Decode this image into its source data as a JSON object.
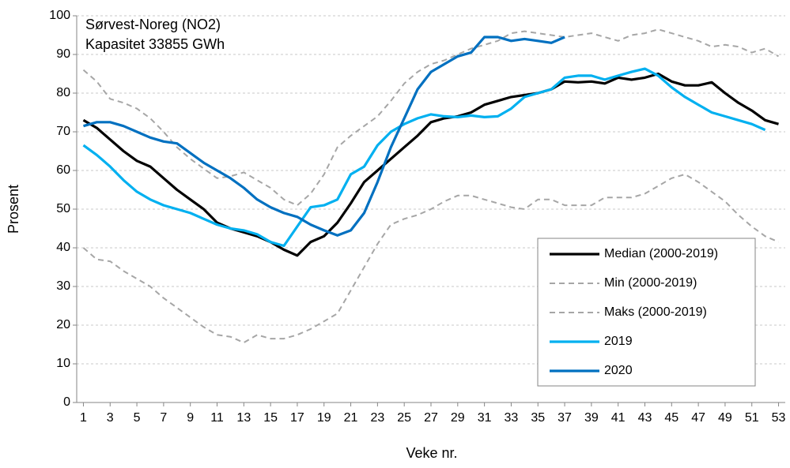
{
  "chart_data": {
    "type": "line",
    "title": "Sørvest-Noreg (NO2)",
    "subtitle": "Kapasitet 33855 GWh",
    "x_label": "Veke nr.",
    "y_label": "Prosent",
    "x": [
      1,
      2,
      3,
      4,
      5,
      6,
      7,
      8,
      9,
      10,
      11,
      12,
      13,
      14,
      15,
      16,
      17,
      18,
      19,
      20,
      21,
      22,
      23,
      24,
      25,
      26,
      27,
      28,
      29,
      30,
      31,
      32,
      33,
      34,
      35,
      36,
      37,
      38,
      39,
      40,
      41,
      42,
      43,
      44,
      45,
      46,
      47,
      48,
      49,
      50,
      51,
      52,
      53
    ],
    "xlim": [
      0.5,
      53.5
    ],
    "xticks": [
      1,
      3,
      5,
      7,
      9,
      11,
      13,
      15,
      17,
      19,
      21,
      23,
      25,
      27,
      29,
      31,
      33,
      35,
      37,
      39,
      41,
      43,
      45,
      47,
      49,
      51,
      53
    ],
    "ylim": [
      0,
      100
    ],
    "yticks": [
      0,
      10,
      20,
      30,
      40,
      50,
      60,
      70,
      80,
      90,
      100
    ],
    "grid": true,
    "legend": "lower right",
    "series": [
      {
        "name": "Median (2000-2019)",
        "color": "#000000",
        "dashed": false,
        "values": [
          73,
          71,
          68,
          65,
          62.5,
          61,
          58,
          55,
          52.5,
          50,
          46.5,
          45,
          44,
          43,
          41.5,
          39.5,
          38,
          41.5,
          43,
          46.5,
          51.5,
          57,
          60,
          63,
          66,
          69,
          72.5,
          73.5,
          74,
          75,
          77,
          78,
          79,
          79.5,
          80,
          81,
          83,
          82.8,
          83,
          82.5,
          84,
          83.5,
          84,
          85,
          83,
          82,
          82,
          82.8,
          80,
          77.5,
          75.5,
          73,
          72
        ]
      },
      {
        "name": "Min (2000-2019)",
        "color": "#a6a6a6",
        "dashed": true,
        "values": [
          40,
          37,
          36.5,
          34,
          32,
          30,
          27,
          24.5,
          22,
          19.5,
          17.5,
          17,
          15.5,
          17.5,
          16.5,
          16.5,
          17.5,
          19,
          21,
          23,
          29,
          35,
          41,
          46,
          47.5,
          48.5,
          50,
          52,
          53.5,
          53.5,
          52.5,
          51.5,
          50.5,
          50,
          52.5,
          52.5,
          51,
          51,
          51,
          53,
          53,
          53,
          54,
          56,
          58,
          59,
          57,
          54.5,
          52,
          48.5,
          45.5,
          43,
          41.5
        ]
      },
      {
        "name": "Maks (2000-2019)",
        "color": "#a6a6a6",
        "dashed": true,
        "values": [
          86,
          83,
          78.5,
          77.5,
          76,
          73.5,
          70,
          66,
          63,
          60.5,
          58,
          58.5,
          59.5,
          57.5,
          55.5,
          52.5,
          51,
          54,
          59,
          66,
          69,
          71.5,
          74,
          78,
          82.5,
          85.5,
          87.5,
          88.5,
          90,
          91.5,
          92.5,
          93.5,
          95.5,
          96,
          95.5,
          95,
          94.5,
          95,
          95.5,
          94.5,
          93.5,
          95,
          95.5,
          96.5,
          95.5,
          94.5,
          93.5,
          92,
          92.5,
          92,
          90.5,
          91.5,
          89.5
        ]
      },
      {
        "name": "2019",
        "color": "#00b0f0",
        "dashed": false,
        "values": [
          66.5,
          64,
          61,
          57.5,
          54.5,
          52.5,
          51,
          50,
          49,
          47.5,
          46,
          45,
          44.5,
          43.5,
          41.5,
          40.5,
          45.5,
          50.5,
          51,
          52.5,
          59,
          61,
          66.5,
          70,
          72,
          73.5,
          74.5,
          74,
          73.8,
          74.2,
          73.8,
          74,
          76,
          79,
          80,
          81,
          84,
          84.5,
          84.5,
          83.5,
          84.5,
          85.5,
          86.3,
          84.5,
          81.5,
          79,
          77,
          75,
          74,
          73,
          72,
          70.5,
          null
        ]
      },
      {
        "name": "2020",
        "color": "#0070c0",
        "dashed": false,
        "values": [
          71.5,
          72.5,
          72.5,
          71.5,
          70,
          68.5,
          67.5,
          67,
          64.5,
          62,
          60,
          58,
          55.5,
          52.5,
          50.5,
          49,
          48,
          46,
          44.5,
          43.2,
          44.5,
          49,
          57,
          66,
          73.5,
          81,
          85.5,
          87.5,
          89.5,
          90.5,
          94.5,
          94.5,
          93.5,
          94,
          93.5,
          93,
          94.5,
          null,
          null,
          null,
          null,
          null,
          null,
          null,
          null,
          null,
          null,
          null,
          null,
          null,
          null,
          null,
          null
        ]
      }
    ]
  }
}
